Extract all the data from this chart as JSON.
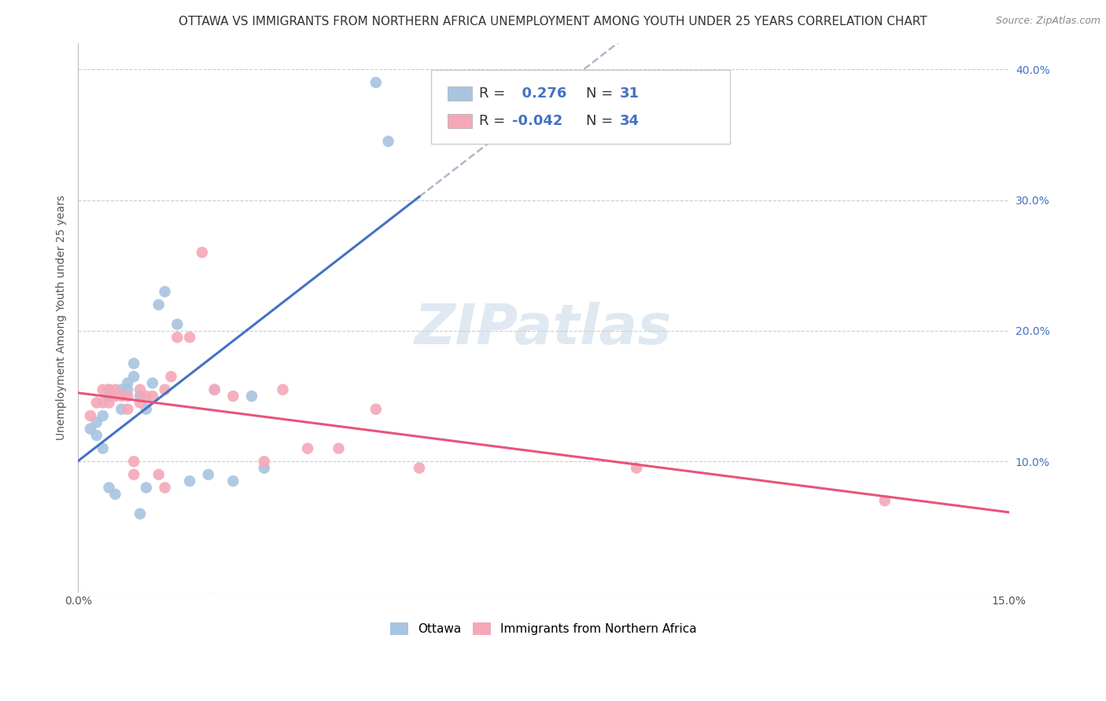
{
  "title": "OTTAWA VS IMMIGRANTS FROM NORTHERN AFRICA UNEMPLOYMENT AMONG YOUTH UNDER 25 YEARS CORRELATION CHART",
  "source": "Source: ZipAtlas.com",
  "ylabel": "Unemployment Among Youth under 25 years",
  "xlim": [
    0.0,
    0.15
  ],
  "ylim": [
    0.0,
    0.42
  ],
  "xticks": [
    0.0,
    0.03,
    0.06,
    0.09,
    0.12,
    0.15
  ],
  "xtick_labels": [
    "0.0%",
    "",
    "",
    "",
    "",
    "15.0%"
  ],
  "ytick_right_values": [
    0.0,
    0.1,
    0.2,
    0.3,
    0.4
  ],
  "ytick_right_labels": [
    "",
    "10.0%",
    "20.0%",
    "30.0%",
    "40.0%"
  ],
  "ottawa_R": 0.276,
  "ottawa_N": 31,
  "imm_R": -0.042,
  "imm_N": 34,
  "ottawa_color": "#a8c4e0",
  "imm_color": "#f4a8b8",
  "ottawa_line_color": "#4472c4",
  "imm_line_color": "#e8547a",
  "regression_line_color": "#b0b8c8",
  "watermark": "ZIPatlas",
  "ottawa_x": [
    0.002,
    0.003,
    0.003,
    0.004,
    0.004,
    0.005,
    0.005,
    0.005,
    0.006,
    0.007,
    0.007,
    0.008,
    0.008,
    0.009,
    0.009,
    0.01,
    0.01,
    0.011,
    0.011,
    0.012,
    0.013,
    0.014,
    0.016,
    0.018,
    0.021,
    0.022,
    0.025,
    0.028,
    0.03,
    0.048,
    0.05
  ],
  "ottawa_y": [
    0.125,
    0.12,
    0.13,
    0.11,
    0.135,
    0.15,
    0.155,
    0.08,
    0.075,
    0.14,
    0.155,
    0.155,
    0.16,
    0.165,
    0.175,
    0.15,
    0.06,
    0.08,
    0.14,
    0.16,
    0.22,
    0.23,
    0.205,
    0.085,
    0.09,
    0.155,
    0.085,
    0.15,
    0.095,
    0.39,
    0.345
  ],
  "imm_x": [
    0.002,
    0.003,
    0.004,
    0.004,
    0.005,
    0.005,
    0.006,
    0.006,
    0.007,
    0.008,
    0.008,
    0.009,
    0.009,
    0.01,
    0.01,
    0.011,
    0.012,
    0.013,
    0.014,
    0.014,
    0.015,
    0.016,
    0.018,
    0.02,
    0.022,
    0.025,
    0.03,
    0.033,
    0.037,
    0.042,
    0.048,
    0.055,
    0.09,
    0.13
  ],
  "imm_y": [
    0.135,
    0.145,
    0.145,
    0.155,
    0.145,
    0.155,
    0.15,
    0.155,
    0.15,
    0.14,
    0.15,
    0.09,
    0.1,
    0.145,
    0.155,
    0.15,
    0.15,
    0.09,
    0.08,
    0.155,
    0.165,
    0.195,
    0.195,
    0.26,
    0.155,
    0.15,
    0.1,
    0.155,
    0.11,
    0.11,
    0.14,
    0.095,
    0.095,
    0.07
  ],
  "background_color": "#ffffff",
  "grid_color": "#cccccc",
  "title_fontsize": 11,
  "axis_fontsize": 10,
  "legend_fontsize": 13,
  "marker_size": 110
}
